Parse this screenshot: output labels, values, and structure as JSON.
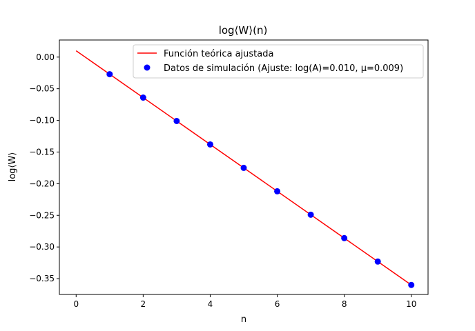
{
  "chart_data": {
    "type": "line",
    "title": "log⟨W⟩(n)",
    "xlabel": "n",
    "ylabel": "log⟨W⟩",
    "xlim": [
      -0.5,
      10.5
    ],
    "ylim": [
      -0.375,
      0.027
    ],
    "x_ticks": [
      0,
      2,
      4,
      6,
      8,
      10
    ],
    "x_tick_labels": [
      "0",
      "2",
      "4",
      "6",
      "8",
      "10"
    ],
    "y_ticks": [
      0.0,
      -0.05,
      -0.1,
      -0.15,
      -0.2,
      -0.25,
      -0.3,
      -0.35
    ],
    "y_tick_labels": [
      "0.00",
      "−0.05",
      "−0.10",
      "−0.15",
      "−0.20",
      "−0.25",
      "−0.30",
      "−0.35"
    ],
    "grid": false,
    "legend_position": "top-right",
    "series": [
      {
        "name": "Función teórica ajustada",
        "kind": "line",
        "color": "#ff0000",
        "x": [
          0,
          10
        ],
        "y": [
          0.01,
          -0.36
        ]
      },
      {
        "name": "Datos de simulación (Ajuste: log(A)=0.010, μ=0.009)",
        "kind": "scatter",
        "color": "#0000ff",
        "x": [
          1,
          2,
          3,
          4,
          5,
          6,
          7,
          8,
          9,
          10
        ],
        "y": [
          -0.027,
          -0.064,
          -0.101,
          -0.138,
          -0.175,
          -0.212,
          -0.249,
          -0.286,
          -0.323,
          -0.36
        ]
      }
    ]
  }
}
